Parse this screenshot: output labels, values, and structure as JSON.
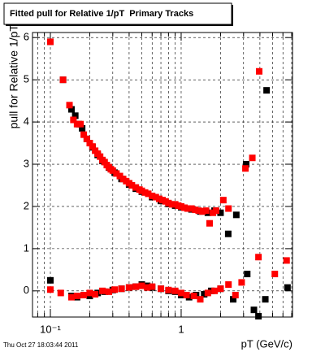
{
  "chart_data": {
    "type": "scatter",
    "title": "Fitted pull for Relative 1/pT  Primary Tracks",
    "xlabel": "pT (GeV/c)",
    "ylabel": "pull for Relative 1/pT",
    "footer": "Thu Oct 27 18:03:44 2011",
    "xscale": "log",
    "grid": true,
    "xlim": [
      0.073,
      7.1
    ],
    "ylim": [
      -0.62,
      6.12
    ],
    "xticks": [
      {
        "value": 0.1,
        "label": "10⁻¹"
      },
      1
    ],
    "xminor": [
      0.08,
      0.09,
      0.2,
      0.3,
      0.4,
      0.5,
      0.6,
      0.7,
      0.8,
      0.9,
      2,
      3,
      4,
      5,
      6,
      7
    ],
    "yticks": [
      0,
      1,
      2,
      3,
      4,
      5,
      6
    ],
    "series": [
      {
        "color": "#000000",
        "x": [
          0.1,
          0.125,
          0.145,
          0.155,
          0.165,
          0.175,
          0.19,
          0.21,
          0.23,
          0.25,
          0.28,
          0.31,
          0.35,
          0.4,
          0.45,
          0.5,
          0.6,
          0.7,
          0.8,
          0.9,
          1.0,
          1.2,
          1.4,
          1.6,
          1.8,
          2.0,
          2.29,
          2.64,
          3.14,
          4.5
        ],
        "values": [
          5.9,
          5.0,
          4.3,
          4.15,
          3.95,
          3.85,
          3.6,
          3.4,
          3.22,
          3.08,
          2.92,
          2.8,
          2.65,
          2.52,
          2.42,
          2.35,
          2.22,
          2.13,
          2.06,
          2.02,
          1.98,
          1.93,
          1.88,
          1.85,
          1.9,
          1.85,
          1.35,
          1.8,
          3.0,
          4.75
        ]
      },
      {
        "color": "#000000",
        "x": [
          0.1,
          0.145,
          0.16,
          0.18,
          0.2,
          0.23,
          0.26,
          0.3,
          0.35,
          0.4,
          0.45,
          0.5,
          0.55,
          0.6,
          0.7,
          0.8,
          0.9,
          1.0,
          1.15,
          1.3,
          1.5,
          1.7,
          2.0,
          2.5,
          3.2,
          3.6,
          3.9,
          4.4,
          6.5
        ],
        "values": [
          0.25,
          -0.12,
          -0.15,
          -0.1,
          -0.12,
          -0.05,
          -0.02,
          0.02,
          0.05,
          0.08,
          0.1,
          0.15,
          0.12,
          0.08,
          0.05,
          0.0,
          -0.02,
          -0.1,
          -0.15,
          -0.1,
          -0.08,
          0.0,
          0.05,
          -0.2,
          0.4,
          -0.45,
          -0.6,
          -0.2,
          0.08
        ]
      },
      {
        "color": "#ff0000",
        "x": [
          0.1,
          0.125,
          0.14,
          0.15,
          0.16,
          0.17,
          0.18,
          0.19,
          0.2,
          0.21,
          0.22,
          0.23,
          0.24,
          0.25,
          0.26,
          0.27,
          0.28,
          0.29,
          0.3,
          0.32,
          0.34,
          0.36,
          0.38,
          0.4,
          0.42,
          0.45,
          0.48,
          0.5,
          0.53,
          0.56,
          0.6,
          0.64,
          0.68,
          0.72,
          0.76,
          0.8,
          0.85,
          0.9,
          0.95,
          1.0,
          1.06,
          1.12,
          1.2,
          1.28,
          1.36,
          1.45,
          1.55,
          1.65,
          1.75,
          1.85,
          2.1,
          2.3,
          3.1,
          3.5,
          3.95
        ],
        "values": [
          5.9,
          5.0,
          4.4,
          4.05,
          3.95,
          3.95,
          3.7,
          3.6,
          3.5,
          3.42,
          3.32,
          3.25,
          3.18,
          3.1,
          3.05,
          2.98,
          2.93,
          2.88,
          2.85,
          2.78,
          2.72,
          2.65,
          2.6,
          2.55,
          2.5,
          2.45,
          2.4,
          2.37,
          2.33,
          2.3,
          2.25,
          2.22,
          2.18,
          2.15,
          2.12,
          2.08,
          2.05,
          2.05,
          2.02,
          2.0,
          1.97,
          1.95,
          1.95,
          1.92,
          1.9,
          1.88,
          1.9,
          1.6,
          1.85,
          1.9,
          2.15,
          1.95,
          2.9,
          3.15,
          5.2
        ]
      },
      {
        "color": "#ff0000",
        "x": [
          0.1,
          0.12,
          0.145,
          0.16,
          0.18,
          0.2,
          0.22,
          0.25,
          0.28,
          0.31,
          0.35,
          0.4,
          0.45,
          0.5,
          0.55,
          0.6,
          0.7,
          0.8,
          0.9,
          1.0,
          1.1,
          1.25,
          1.4,
          1.6,
          1.8,
          2.0,
          2.3,
          2.6,
          2.9,
          3.9,
          5.2,
          6.4
        ],
        "values": [
          0.03,
          -0.05,
          -0.15,
          -0.12,
          -0.1,
          -0.05,
          -0.08,
          0.0,
          -0.02,
          0.03,
          0.05,
          0.08,
          0.1,
          0.12,
          0.08,
          0.1,
          0.05,
          0.02,
          0.0,
          -0.05,
          -0.1,
          -0.12,
          -0.2,
          -0.05,
          0.0,
          0.05,
          0.15,
          -0.1,
          0.2,
          0.8,
          0.4,
          0.72
        ]
      }
    ]
  }
}
